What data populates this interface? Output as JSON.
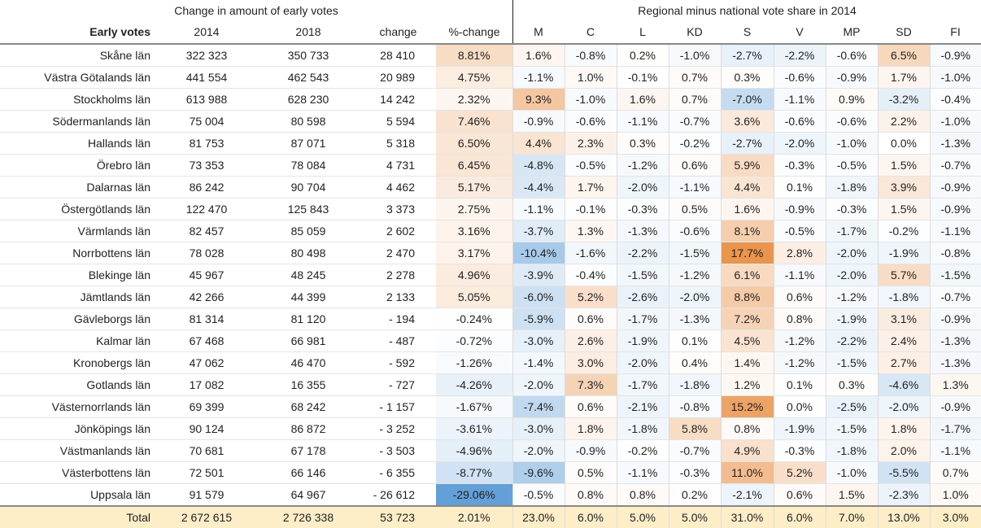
{
  "header": {
    "group_left": "Change in amount of early votes",
    "group_right": "Regional minus national vote share in 2014",
    "columns": [
      "Early votes",
      "2014",
      "2018",
      "change",
      "%-change",
      "M",
      "C",
      "L",
      "KD",
      "S",
      "V",
      "MP",
      "SD",
      "FI"
    ]
  },
  "rows": [
    {
      "name": "Skåne län",
      "v2014": "322 323",
      "v2018": "350 733",
      "change": "28 410",
      "pct": "8.81%",
      "reg": [
        "1.6%",
        "-0.8%",
        "0.2%",
        "-1.0%",
        "-2.7%",
        "-2.2%",
        "-0.6%",
        "6.5%",
        "-0.9%"
      ]
    },
    {
      "name": "Västra Götalands län",
      "v2014": "441 554",
      "v2018": "462 543",
      "change": "20 989",
      "pct": "4.75%",
      "reg": [
        "-1.1%",
        "1.0%",
        "-0.1%",
        "0.7%",
        "0.3%",
        "-0.6%",
        "-0.9%",
        "1.7%",
        "-1.0%"
      ]
    },
    {
      "name": "Stockholms län",
      "v2014": "613 988",
      "v2018": "628 230",
      "change": "14 242",
      "pct": "2.32%",
      "reg": [
        "9.3%",
        "-1.0%",
        "1.6%",
        "0.7%",
        "-7.0%",
        "-1.1%",
        "0.9%",
        "-3.2%",
        "-0.4%"
      ]
    },
    {
      "name": "Södermanlands län",
      "v2014": "75 004",
      "v2018": "80 598",
      "change": "5 594",
      "pct": "7.46%",
      "reg": [
        "-0.9%",
        "-0.6%",
        "-1.1%",
        "-0.7%",
        "3.6%",
        "-0.6%",
        "-0.6%",
        "2.2%",
        "-1.0%"
      ]
    },
    {
      "name": "Hallands län",
      "v2014": "81 753",
      "v2018": "87 071",
      "change": "5 318",
      "pct": "6.50%",
      "reg": [
        "4.4%",
        "2.3%",
        "0.3%",
        "-0.2%",
        "-2.7%",
        "-2.0%",
        "-1.0%",
        "0.0%",
        "-1.3%"
      ]
    },
    {
      "name": "Örebro län",
      "v2014": "73 353",
      "v2018": "78 084",
      "change": "4 731",
      "pct": "6.45%",
      "reg": [
        "-4.8%",
        "-0.5%",
        "-1.2%",
        "0.6%",
        "5.9%",
        "-0.3%",
        "-0.5%",
        "1.5%",
        "-0.7%"
      ]
    },
    {
      "name": "Dalarnas län",
      "v2014": "86 242",
      "v2018": "90 704",
      "change": "4 462",
      "pct": "5.17%",
      "reg": [
        "-4.4%",
        "1.7%",
        "-2.0%",
        "-1.1%",
        "4.4%",
        "0.1%",
        "-1.8%",
        "3.9%",
        "-0.9%"
      ]
    },
    {
      "name": "Östergötlands län",
      "v2014": "122 470",
      "v2018": "125 843",
      "change": "3 373",
      "pct": "2.75%",
      "reg": [
        "-1.1%",
        "-0.1%",
        "-0.3%",
        "0.5%",
        "1.6%",
        "-0.9%",
        "-0.3%",
        "1.5%",
        "-0.9%"
      ]
    },
    {
      "name": "Värmlands län",
      "v2014": "82 457",
      "v2018": "85 059",
      "change": "2 602",
      "pct": "3.16%",
      "reg": [
        "-3.7%",
        "1.3%",
        "-1.3%",
        "-0.6%",
        "8.1%",
        "-0.5%",
        "-1.7%",
        "-0.2%",
        "-1.1%"
      ]
    },
    {
      "name": "Norrbottens län",
      "v2014": "78 028",
      "v2018": "80 498",
      "change": "2 470",
      "pct": "3.17%",
      "reg": [
        "-10.4%",
        "-1.6%",
        "-2.2%",
        "-1.5%",
        "17.7%",
        "2.8%",
        "-2.0%",
        "-1.9%",
        "-0.8%"
      ]
    },
    {
      "name": "Blekinge län",
      "v2014": "45 967",
      "v2018": "48 245",
      "change": "2 278",
      "pct": "4.96%",
      "reg": [
        "-3.9%",
        "-0.4%",
        "-1.5%",
        "-1.2%",
        "6.1%",
        "-1.1%",
        "-2.0%",
        "5.7%",
        "-1.5%"
      ]
    },
    {
      "name": "Jämtlands län",
      "v2014": "42 266",
      "v2018": "44 399",
      "change": "2 133",
      "pct": "5.05%",
      "reg": [
        "-6.0%",
        "5.2%",
        "-2.6%",
        "-2.0%",
        "8.8%",
        "0.6%",
        "-1.2%",
        "-1.8%",
        "-0.7%"
      ]
    },
    {
      "name": "Gävleborgs län",
      "v2014": "81 314",
      "v2018": "81 120",
      "change": "- 194",
      "pct": "-0.24%",
      "reg": [
        "-5.9%",
        "0.6%",
        "-1.7%",
        "-1.3%",
        "7.2%",
        "0.8%",
        "-1.9%",
        "3.1%",
        "-0.9%"
      ]
    },
    {
      "name": "Kalmar län",
      "v2014": "67 468",
      "v2018": "66 981",
      "change": "- 487",
      "pct": "-0.72%",
      "reg": [
        "-3.0%",
        "2.6%",
        "-1.9%",
        "0.1%",
        "4.5%",
        "-1.2%",
        "-2.2%",
        "2.4%",
        "-1.3%"
      ]
    },
    {
      "name": "Kronobergs län",
      "v2014": "47 062",
      "v2018": "46 470",
      "change": "- 592",
      "pct": "-1.26%",
      "reg": [
        "-1.4%",
        "3.0%",
        "-2.0%",
        "0.4%",
        "1.4%",
        "-1.2%",
        "-1.5%",
        "2.7%",
        "-1.3%"
      ]
    },
    {
      "name": "Gotlands län",
      "v2014": "17 082",
      "v2018": "16 355",
      "change": "- 727",
      "pct": "-4.26%",
      "reg": [
        "-2.0%",
        "7.3%",
        "-1.7%",
        "-1.8%",
        "1.2%",
        "0.1%",
        "0.3%",
        "-4.6%",
        "1.3%"
      ]
    },
    {
      "name": "Västernorrlands län",
      "v2014": "69 399",
      "v2018": "68 242",
      "change": "- 1 157",
      "pct": "-1.67%",
      "reg": [
        "-7.4%",
        "0.6%",
        "-2.1%",
        "-0.8%",
        "15.2%",
        "0.0%",
        "-2.5%",
        "-2.0%",
        "-0.9%"
      ]
    },
    {
      "name": "Jönköpings län",
      "v2014": "90 124",
      "v2018": "86 872",
      "change": "- 3 252",
      "pct": "-3.61%",
      "reg": [
        "-3.0%",
        "1.8%",
        "-1.8%",
        "5.8%",
        "0.8%",
        "-1.9%",
        "-1.5%",
        "1.8%",
        "-1.7%"
      ]
    },
    {
      "name": "Västmanlands län",
      "v2014": "70 681",
      "v2018": "67 178",
      "change": "- 3 503",
      "pct": "-4.96%",
      "reg": [
        "-2.0%",
        "-0.9%",
        "-0.2%",
        "-0.7%",
        "4.9%",
        "-0.3%",
        "-1.8%",
        "2.0%",
        "-1.1%"
      ]
    },
    {
      "name": "Västerbottens län",
      "v2014": "72 501",
      "v2018": "66 146",
      "change": "- 6 355",
      "pct": "-8.77%",
      "reg": [
        "-9.6%",
        "0.5%",
        "-1.1%",
        "-0.3%",
        "11.0%",
        "5.2%",
        "-1.0%",
        "-5.5%",
        "0.7%"
      ]
    },
    {
      "name": "Uppsala län",
      "v2014": "91 579",
      "v2018": "64 967",
      "change": "- 26 612",
      "pct": "-29.06%",
      "reg": [
        "-0.5%",
        "0.8%",
        "0.8%",
        "0.2%",
        "-2.1%",
        "0.6%",
        "1.5%",
        "-2.3%",
        "1.0%"
      ]
    }
  ],
  "total": {
    "name": "Total",
    "v2014": "2 672 615",
    "v2018": "2 726 338",
    "change": "53 723",
    "pct": "2.01%",
    "reg": [
      "23.0%",
      "6.0%",
      "5.0%",
      "5.0%",
      "31.0%",
      "6.0%",
      "7.0%",
      "13.0%",
      "3.0%"
    ]
  },
  "colors": {
    "positive": "#e8893a",
    "negative": "#5b9bd5",
    "total_bg": "#fdeec8"
  },
  "chart_data": {
    "type": "table",
    "title": "Change in amount of early votes / Regional minus national vote share in 2014",
    "parties": [
      "M",
      "C",
      "L",
      "KD",
      "S",
      "V",
      "MP",
      "SD",
      "FI"
    ]
  }
}
